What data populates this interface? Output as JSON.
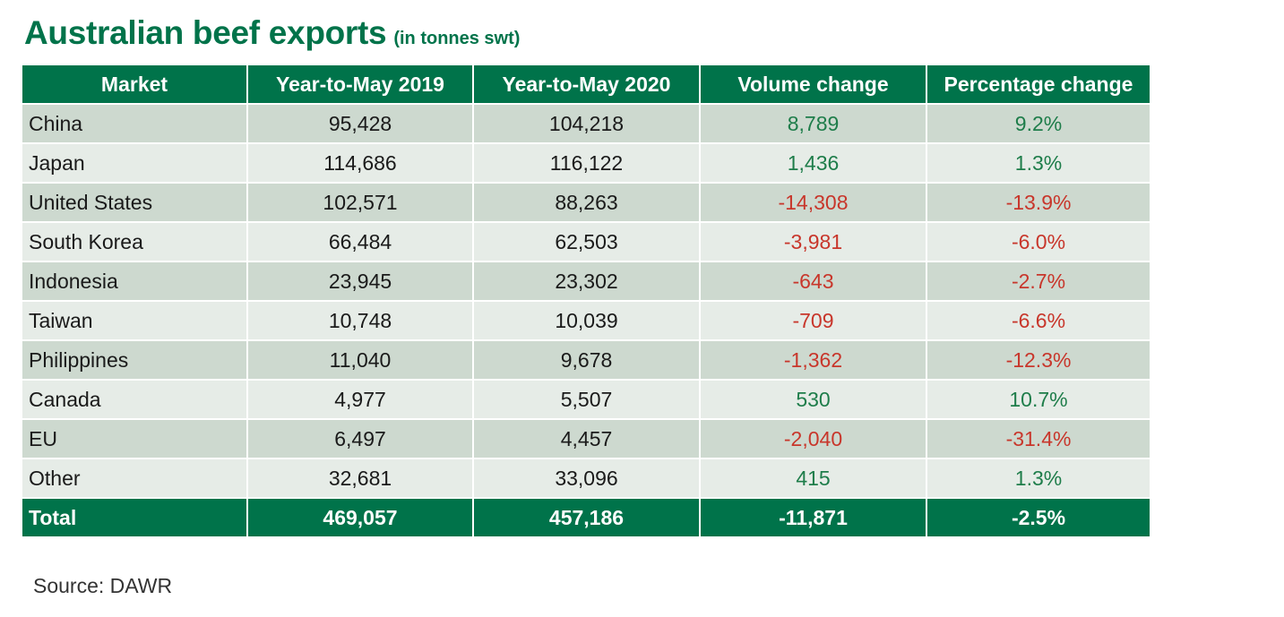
{
  "title": "Australian beef exports",
  "subtitle": "(in tonnes swt)",
  "source": "Source: DAWR",
  "colors": {
    "header_bg": "#00734a",
    "row_odd": "#cdd9cf",
    "row_even": "#e6ece7",
    "positive": "#1e7d4a",
    "negative": "#c8362b"
  },
  "chart_data": {
    "type": "table",
    "title": "Australian beef exports",
    "subtitle": "(in tonnes swt)",
    "columns": [
      "Market",
      "Year-to-May 2019",
      "Year-to-May 2020",
      "Volume change",
      "Percentage change"
    ],
    "rows": [
      [
        "China",
        "95,428",
        "104,218",
        "8,789",
        "9.2%"
      ],
      [
        "Japan",
        "114,686",
        "116,122",
        "1,436",
        "1.3%"
      ],
      [
        "United States",
        "102,571",
        "88,263",
        "-14,308",
        "-13.9%"
      ],
      [
        "South Korea",
        "66,484",
        "62,503",
        "-3,981",
        "-6.0%"
      ],
      [
        "Indonesia",
        "23,945",
        "23,302",
        "-643",
        "-2.7%"
      ],
      [
        "Taiwan",
        "10,748",
        "10,039",
        "-709",
        "-6.6%"
      ],
      [
        "Philippines",
        "11,040",
        "9,678",
        "-1,362",
        "-12.3%"
      ],
      [
        "Canada",
        "4,977",
        "5,507",
        "530",
        "10.7%"
      ],
      [
        "EU",
        "6,497",
        "4,457",
        "-2,040",
        "-31.4%"
      ],
      [
        "Other",
        "32,681",
        "33,096",
        "415",
        "1.3%"
      ]
    ],
    "total": [
      "Total",
      "469,057",
      "457,186",
      "-11,871",
      "-2.5%"
    ]
  }
}
